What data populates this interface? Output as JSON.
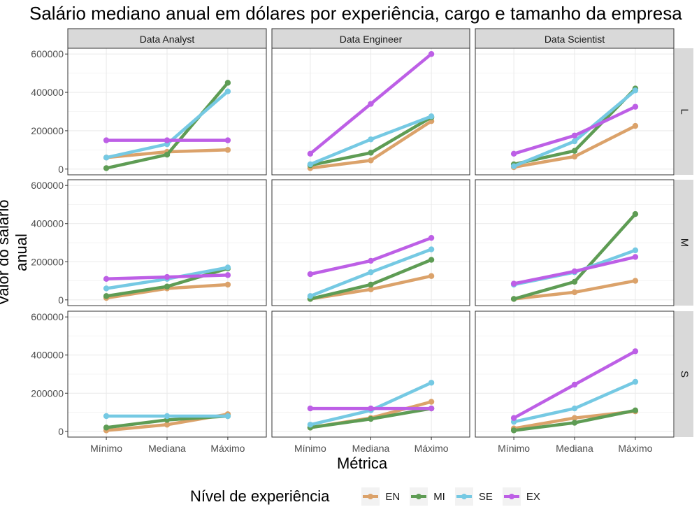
{
  "chart_data": {
    "type": "line",
    "title": "Salário mediano anual em dólares por experiência, cargo e tamanho da empresa",
    "xlabel": "Métrica",
    "ylabel": "Valor do salário anual",
    "categories": [
      "Mínimo",
      "Mediana",
      "Máximo"
    ],
    "ylim": [
      -30000,
      630000
    ],
    "yticks": [
      0,
      200000,
      400000,
      600000
    ],
    "ytick_labels": [
      "0",
      "200000",
      "400000",
      "600000"
    ],
    "grid": true,
    "legend_title": "Nível de experiência",
    "legend_position": "bottom",
    "series_colors": {
      "EN": "#dba26a",
      "MI": "#5e9c54",
      "SE": "#75c9e3",
      "EX": "#bd5fe6"
    },
    "col_facets": [
      "Data Analyst",
      "Data Engineer",
      "Data Scientist"
    ],
    "row_facets": [
      "L",
      "M",
      "S"
    ],
    "panels": [
      {
        "col": "Data Analyst",
        "row": "L",
        "series": [
          {
            "name": "EN",
            "values": [
              60000,
              90000,
              100000
            ]
          },
          {
            "name": "MI",
            "values": [
              5000,
              75000,
              450000
            ]
          },
          {
            "name": "SE",
            "values": [
              60000,
              130000,
              405000
            ]
          },
          {
            "name": "EX",
            "values": [
              150000,
              150000,
              150000
            ]
          }
        ]
      },
      {
        "col": "Data Engineer",
        "row": "L",
        "series": [
          {
            "name": "EN",
            "values": [
              5000,
              45000,
              250000
            ]
          },
          {
            "name": "MI",
            "values": [
              20000,
              85000,
              270000
            ]
          },
          {
            "name": "SE",
            "values": [
              25000,
              155000,
              275000
            ]
          },
          {
            "name": "EX",
            "values": [
              80000,
              340000,
              600000
            ]
          }
        ]
      },
      {
        "col": "Data Scientist",
        "row": "L",
        "series": [
          {
            "name": "EN",
            "values": [
              10000,
              65000,
              225000
            ]
          },
          {
            "name": "MI",
            "values": [
              25000,
              95000,
              420000
            ]
          },
          {
            "name": "SE",
            "values": [
              15000,
              145000,
              410000
            ]
          },
          {
            "name": "EX",
            "values": [
              80000,
              175000,
              325000
            ]
          }
        ]
      },
      {
        "col": "Data Analyst",
        "row": "M",
        "series": [
          {
            "name": "EN",
            "values": [
              10000,
              60000,
              80000
            ]
          },
          {
            "name": "MI",
            "values": [
              20000,
              70000,
              165000
            ]
          },
          {
            "name": "SE",
            "values": [
              60000,
              110000,
              170000
            ]
          },
          {
            "name": "EX",
            "values": [
              110000,
              120000,
              130000
            ]
          }
        ]
      },
      {
        "col": "Data Engineer",
        "row": "M",
        "series": [
          {
            "name": "EN",
            "values": [
              5000,
              55000,
              125000
            ]
          },
          {
            "name": "MI",
            "values": [
              5000,
              80000,
              210000
            ]
          },
          {
            "name": "SE",
            "values": [
              20000,
              145000,
              265000
            ]
          },
          {
            "name": "EX",
            "values": [
              135000,
              205000,
              325000
            ]
          }
        ]
      },
      {
        "col": "Data Scientist",
        "row": "M",
        "series": [
          {
            "name": "EN",
            "values": [
              5000,
              40000,
              100000
            ]
          },
          {
            "name": "MI",
            "values": [
              5000,
              95000,
              450000
            ]
          },
          {
            "name": "SE",
            "values": [
              80000,
              145000,
              260000
            ]
          },
          {
            "name": "EX",
            "values": [
              85000,
              150000,
              225000
            ]
          }
        ]
      },
      {
        "col": "Data Analyst",
        "row": "S",
        "series": [
          {
            "name": "EN",
            "values": [
              5000,
              35000,
              90000
            ]
          },
          {
            "name": "MI",
            "values": [
              20000,
              60000,
              80000
            ]
          },
          {
            "name": "SE",
            "values": [
              80000,
              80000,
              80000
            ]
          },
          {
            "name": "EX",
            "values": [
              null,
              null,
              null
            ]
          }
        ]
      },
      {
        "col": "Data Engineer",
        "row": "S",
        "series": [
          {
            "name": "EN",
            "values": [
              20000,
              70000,
              155000
            ]
          },
          {
            "name": "MI",
            "values": [
              20000,
              65000,
              120000
            ]
          },
          {
            "name": "SE",
            "values": [
              35000,
              110000,
              255000
            ]
          },
          {
            "name": "EX",
            "values": [
              120000,
              120000,
              120000
            ]
          }
        ]
      },
      {
        "col": "Data Scientist",
        "row": "S",
        "series": [
          {
            "name": "EN",
            "values": [
              15000,
              70000,
              105000
            ]
          },
          {
            "name": "MI",
            "values": [
              5000,
              45000,
              110000
            ]
          },
          {
            "name": "SE",
            "values": [
              50000,
              120000,
              260000
            ]
          },
          {
            "name": "EX",
            "values": [
              70000,
              245000,
              420000
            ]
          }
        ]
      }
    ]
  }
}
